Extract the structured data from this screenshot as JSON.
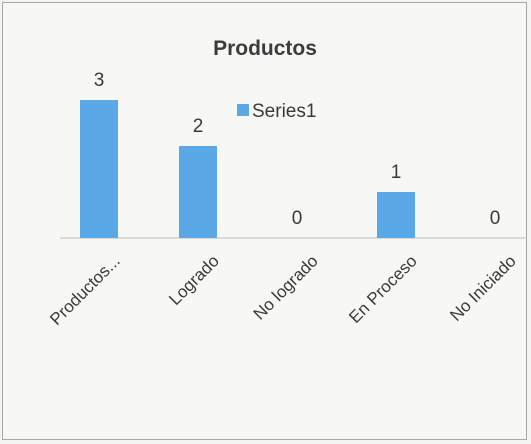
{
  "chart_data": {
    "type": "bar",
    "title": "Productos",
    "categories": [
      "Productos...",
      "Logrado",
      "No logrado",
      "En Proceso",
      "No Iniciado"
    ],
    "series": [
      {
        "name": "Series1",
        "values": [
          3,
          2,
          0,
          1,
          0
        ]
      }
    ],
    "data_labels": [
      "3",
      "2",
      "0",
      "1",
      "0"
    ],
    "ylim": [
      0,
      3
    ],
    "xlabel": "",
    "ylabel": "",
    "grid": false,
    "legend": "top-center",
    "colors": {
      "bar": "#5aa9e6",
      "axis": "#bdbdbd",
      "background": "#f7f7f5"
    }
  }
}
